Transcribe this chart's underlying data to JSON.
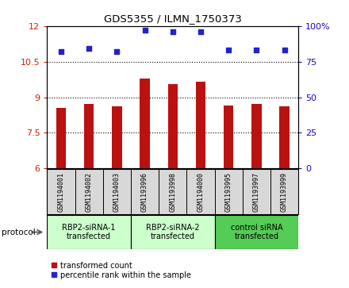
{
  "title": "GDS5355 / ILMN_1750373",
  "samples": [
    "GSM1194001",
    "GSM1194002",
    "GSM1194003",
    "GSM1193996",
    "GSM1193998",
    "GSM1194000",
    "GSM1193995",
    "GSM1193997",
    "GSM1193999"
  ],
  "transformed_counts": [
    8.55,
    8.7,
    8.62,
    9.78,
    9.55,
    9.65,
    8.65,
    8.72,
    8.62
  ],
  "percentile_ranks": [
    82,
    84,
    82,
    97,
    96,
    96,
    83,
    83,
    83
  ],
  "ylim_left": [
    6,
    12
  ],
  "ylim_right": [
    0,
    100
  ],
  "yticks_left": [
    6,
    7.5,
    9,
    10.5,
    12
  ],
  "yticks_right": [
    0,
    25,
    50,
    75,
    100
  ],
  "groups": [
    {
      "label": "RBP2-siRNA-1\ntransfected",
      "start": 0,
      "end": 3,
      "color": "#ccffcc"
    },
    {
      "label": "RBP2-siRNA-2\ntransfected",
      "start": 3,
      "end": 6,
      "color": "#ccffcc"
    },
    {
      "label": "control siRNA\ntransfected",
      "start": 6,
      "end": 9,
      "color": "#55cc55"
    }
  ],
  "bar_color": "#bb1111",
  "dot_color": "#2222cc",
  "grid_color": "#000000",
  "bg_color": "#d8d8d8",
  "left_label_color": "#cc2200",
  "right_label_color": "#2200cc",
  "protocol_label": "protocol",
  "legend_items": [
    {
      "color": "#bb1111",
      "label": "transformed count"
    },
    {
      "color": "#2222cc",
      "label": "percentile rank within the sample"
    }
  ]
}
